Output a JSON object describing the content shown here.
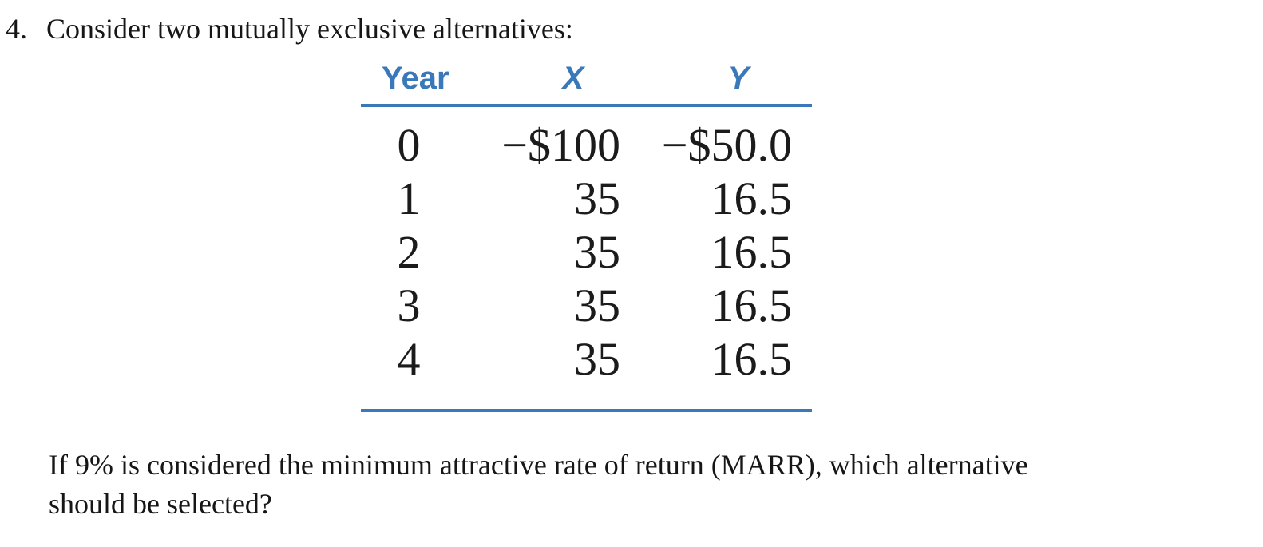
{
  "problem": {
    "number": "4.",
    "statement": "Consider two mutually exclusive alternatives:"
  },
  "table": {
    "headers": [
      "Year",
      "X",
      "Y"
    ],
    "rows": [
      [
        "0",
        "−$100",
        "−$50.0"
      ],
      [
        "1",
        "35",
        "16.5"
      ],
      [
        "2",
        "35",
        "16.5"
      ],
      [
        "3",
        "35",
        "16.5"
      ],
      [
        "4",
        "35",
        "16.5"
      ]
    ]
  },
  "question": {
    "line1": "If 9% is considered the minimum attractive rate of return (MARR), which alternative",
    "line2": "should be selected?"
  },
  "colors": {
    "accent_blue": "#3a79b9",
    "text": "#1b1b1b"
  }
}
